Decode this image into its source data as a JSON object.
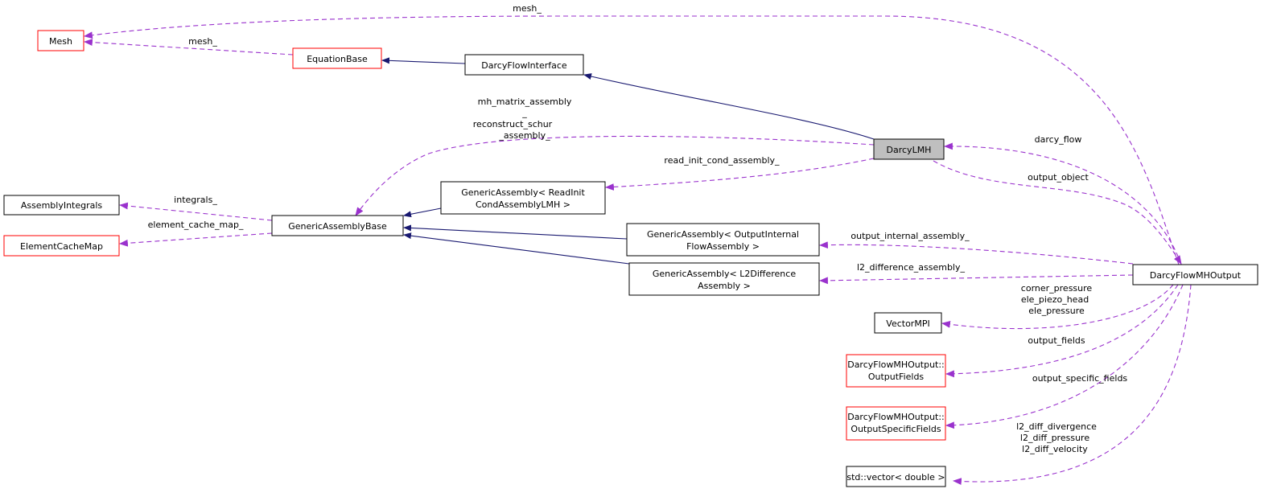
{
  "colors": {
    "inheritance_edge": "#191970",
    "usage_edge": "#9a32cd",
    "current_node_fill": "#bfbfbf",
    "undocumented_border": "#ff0000"
  },
  "nodes": {
    "mesh": {
      "label": "Mesh"
    },
    "equation_base": {
      "label": "EquationBase"
    },
    "darcy_flow_interface": {
      "label": "DarcyFlowInterface"
    },
    "darcy_lmh": {
      "label": "DarcyLMH"
    },
    "assembly_integrals": {
      "label": "AssemblyIntegrals"
    },
    "element_cache_map": {
      "label": "ElementCacheMap"
    },
    "generic_assembly_base": {
      "label": "GenericAssemblyBase"
    },
    "ga_read_init": {
      "line1": "GenericAssembly< ReadInit",
      "line2": "CondAssemblyLMH >"
    },
    "ga_output_internal": {
      "line1": "GenericAssembly< OutputInternal",
      "line2": "FlowAssembly >"
    },
    "ga_l2_difference": {
      "line1": "GenericAssembly< L2Difference",
      "line2": "Assembly >"
    },
    "darcy_flow_mh_output": {
      "label": "DarcyFlowMHOutput"
    },
    "vector_mpi": {
      "label": "VectorMPI"
    },
    "output_fields": {
      "line1": "DarcyFlowMHOutput::",
      "line2": "OutputFields"
    },
    "output_specific_fields": {
      "line1": "DarcyFlowMHOutput::",
      "line2": "OutputSpecificFields"
    },
    "std_vector_double": {
      "label": "std::vector< double >"
    }
  },
  "edge_labels": {
    "mesh_top": "mesh_",
    "mesh_eq": "mesh_",
    "mh_matrix": [
      "mh_matrix_assembly",
      "_",
      "reconstruct_schur",
      "_assembly_"
    ],
    "read_init": "read_init_cond_assembly_",
    "integrals": "integrals_",
    "element_cache_map": "element_cache_map_",
    "darcy_flow": "darcy_flow",
    "output_object": "output_object",
    "output_internal": "output_internal_assembly_",
    "l2_difference": "l2_difference_assembly_",
    "vector_mpi": [
      "corner_pressure",
      "ele_piezo_head",
      "ele_pressure"
    ],
    "output_fields": "output_fields",
    "output_specific_fields": "output_specific_fields",
    "l2_diff": [
      "l2_diff_divergence",
      "l2_diff_pressure",
      "l2_diff_velocity"
    ]
  }
}
